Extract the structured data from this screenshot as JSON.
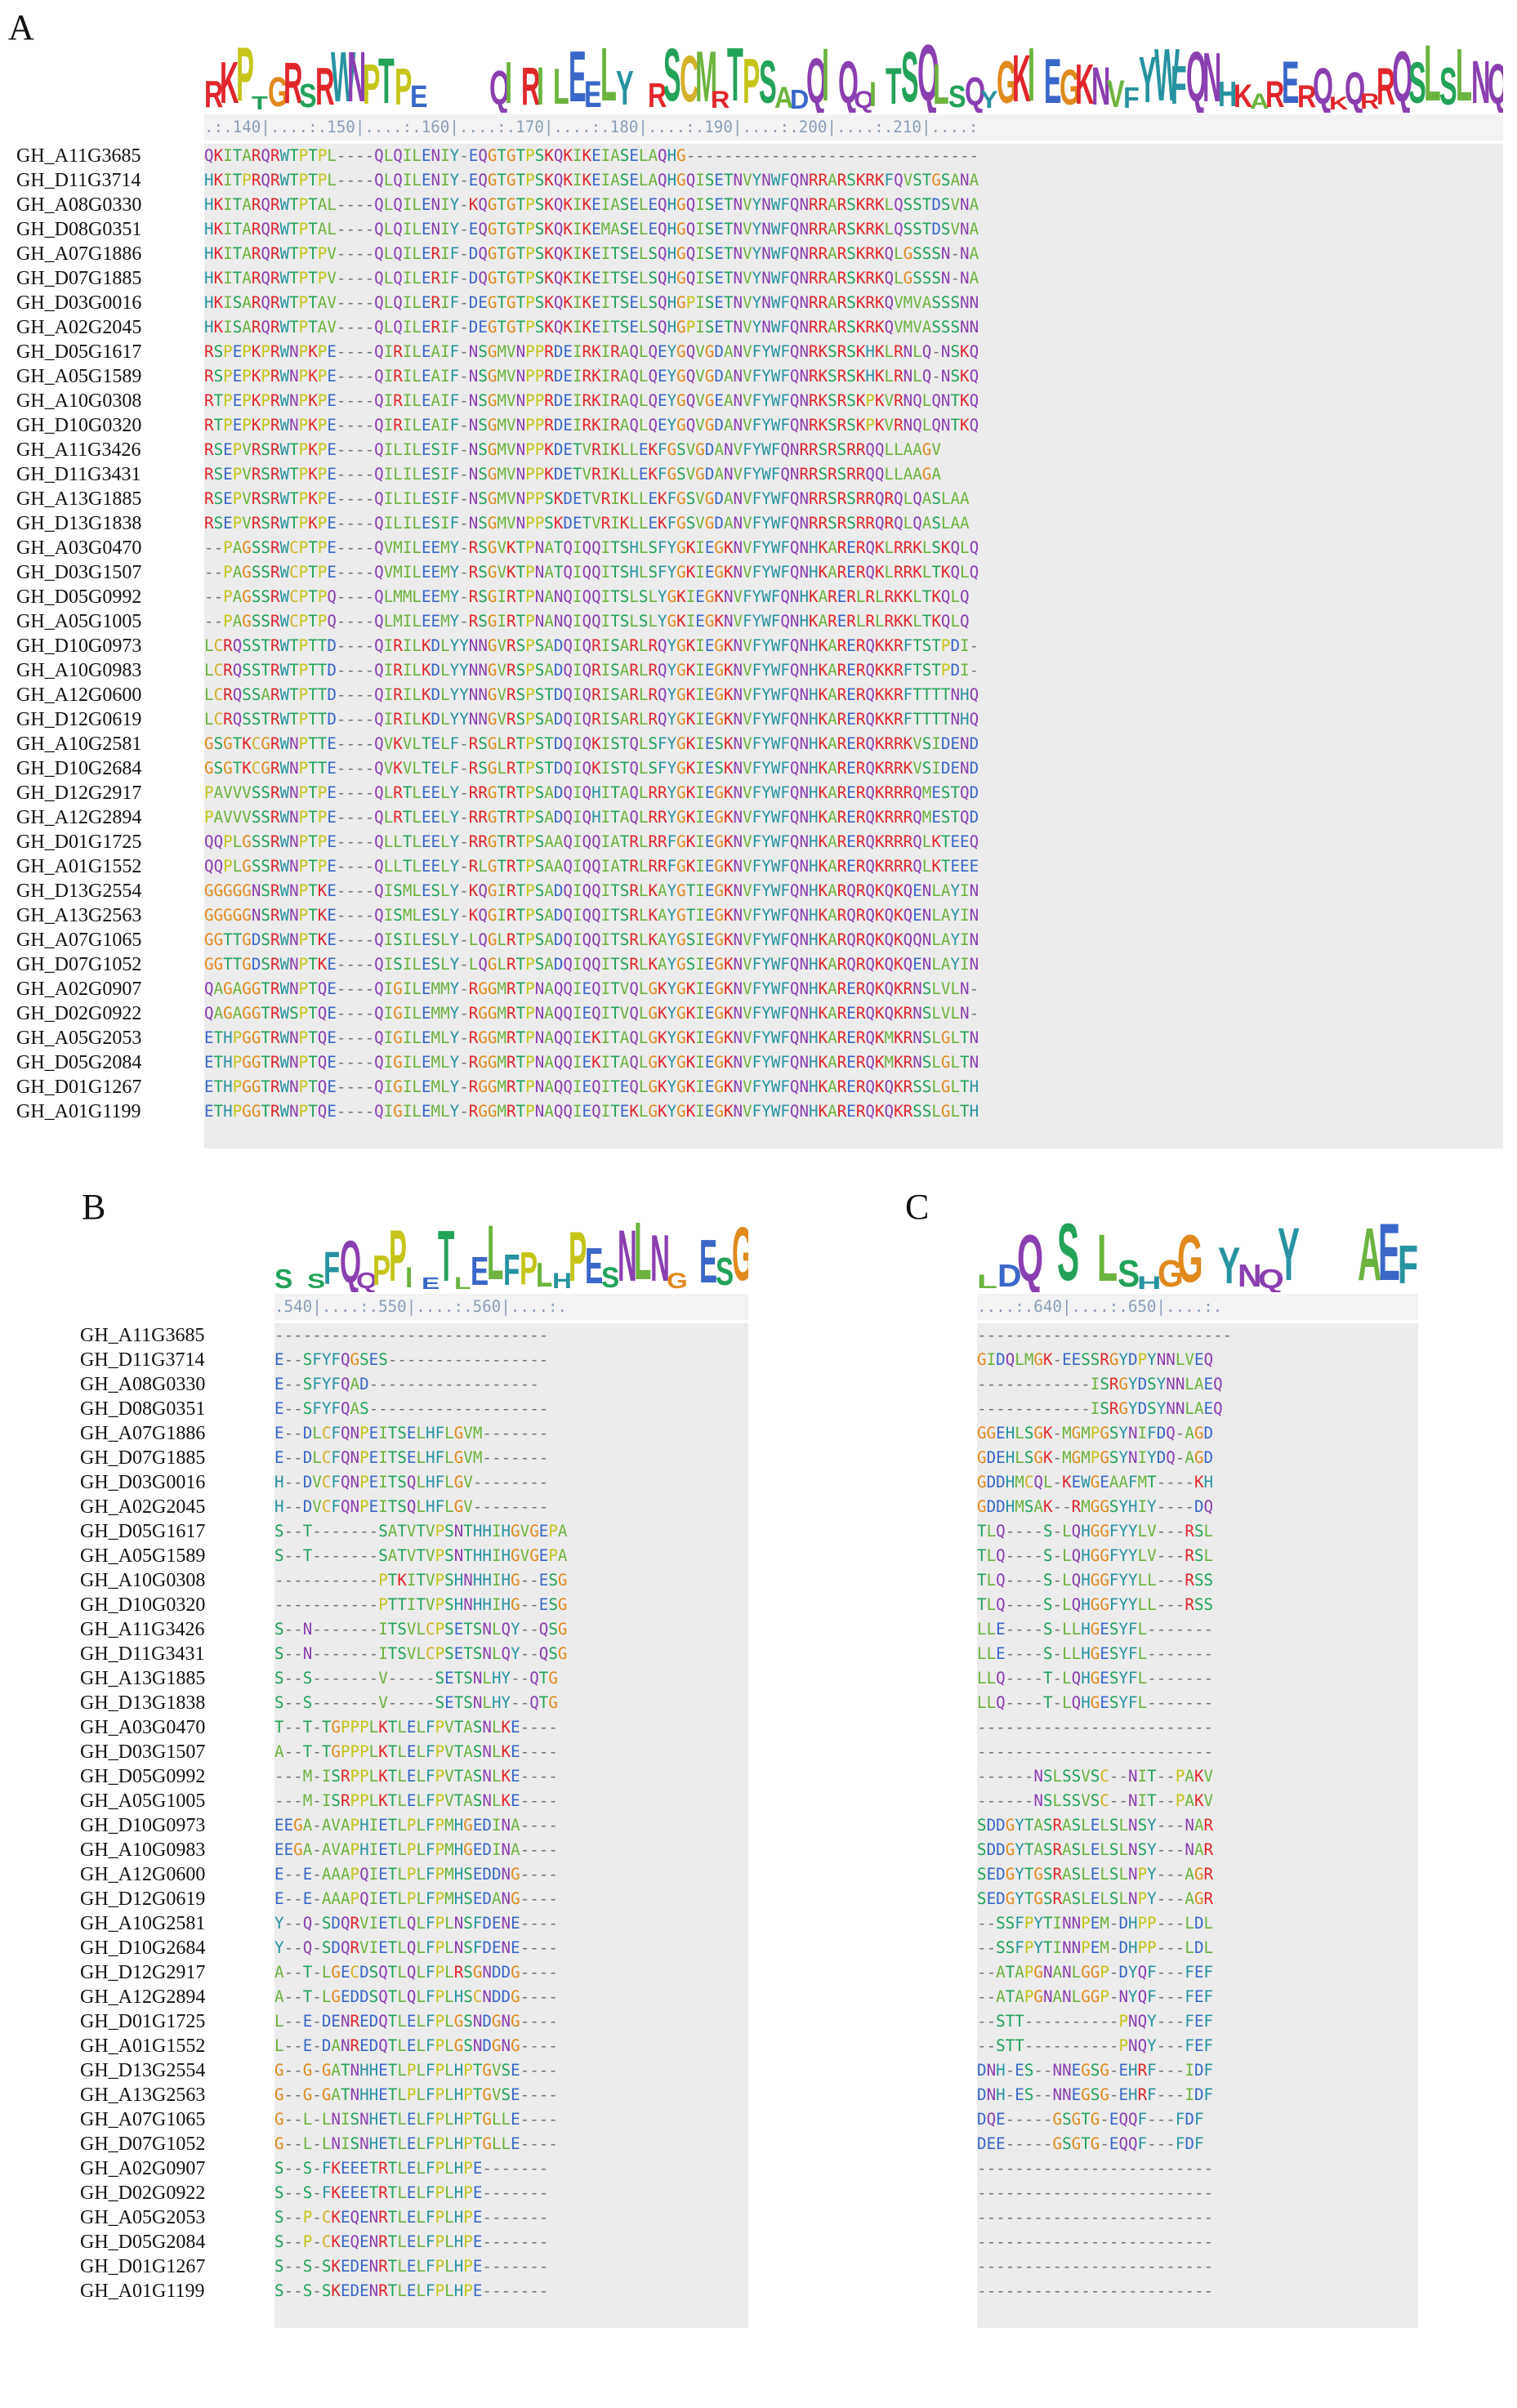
{
  "panels": [
    {
      "id": "A",
      "label": "A",
      "ruler": ".:.140|....:.150|....:.160|....:.170|....:.180|....:.190|....:.200|....:.210|....:",
      "logo": "RKPTGRSRWNPTPE----QIRILEELY-RSCMRTPSADQIQQITSQLSQYGKIEGKNVFYWFQNHKARERQKQRRQSLSLNQ",
      "rows": [
        {
          "name": "GH_A11G3685",
          "seq": "QKITARQRWTPTPL----QLQILENIY-EQGTGTPSKQKIKEIASELAQHG-------------------------------"
        },
        {
          "name": "GH_D11G3714",
          "seq": "HKITPRQRWTPTPL----QLQILENIY-EQGTGTPSKQKIKEIASELAQHGQISETNVYNWFQNRRARSKRKFQVSTGSANA"
        },
        {
          "name": "GH_A08G0330",
          "seq": "HKITARQRWTPTAL----QLQILENIY-KQGTGTPSKQKIKEIASELEQHGQISETNVYNWFQNRRARSKRKLQSSTDSVNA"
        },
        {
          "name": "GH_D08G0351",
          "seq": "HKITARQRWTPTAL----QLQILENIY-EQGTGTPSKQKIKEMASELEQHGQISETNVYNWFQNRRARSKRKLQSSTDSVNA"
        },
        {
          "name": "GH_A07G1886",
          "seq": "HKITARQRWTPTPV----QLQILERIF-DQGTGTPSKQKIKEITSELSQHGQISETNVYNWFQNRRARSKRKQLGSSSN-NA"
        },
        {
          "name": "GH_D07G1885",
          "seq": "HKITARQRWTPTPV----QLQILERIF-DQGTGTPSKQKIKEITSELSQHGQISETNVYNWFQNRRARSKRKQLGSSSN-NA"
        },
        {
          "name": "GH_D03G0016",
          "seq": "HKISARQRWTPTAV----QLQILERIF-DEGTGTPSKQKIKEITSELSQHGPISETNVYNWFQNRRARSKRKQVMVASSSNN"
        },
        {
          "name": "GH_A02G2045",
          "seq": "HKISARQRWTPTAV----QLQILERIF-DEGTGTPSKQKIKEITSELSQHGPISETNVYNWFQNRRARSKRKQVMVASSSNN"
        },
        {
          "name": "GH_D05G1617",
          "seq": "RSPEPKPRWNPKPE----QIRILEAIF-NSGMVNPPRDEIRKIRAQLQEYGQVGDANVFYWFQNRKSRSKHKLRNLQ-NSKQ"
        },
        {
          "name": "GH_A05G1589",
          "seq": "RSPEPKPRWNPKPE----QIRILEAIF-NSGMVNPPRDEIRKIRAQLQEYGQVGDANVFYWFQNRKSRSKHKLRNLQ-NSKQ"
        },
        {
          "name": "GH_A10G0308",
          "seq": "RTPEPKPRWNPKPE----QIRILEAIF-NSGMVNPPRDEIRKIRAQLQEYGQVGEANVFYWFQNRKSRSKPKVRNQLQNTKQ"
        },
        {
          "name": "GH_D10G0320",
          "seq": "RTPEPKPRWNPKPE----QIRILEAIF-NSGMVNPPRDEIRKIRAQLQEYGQVGDANVFYWFQNRKSRSKPKVRNQLQNTKQ"
        },
        {
          "name": "GH_A11G3426",
          "seq": "RSEPVRSRWTPKPE----QILILESIF-NSGMVNPPKDETVRIKLLEKFGSVGDANVFYWFQNRRSRSRRQQLLAAGV"
        },
        {
          "name": "GH_D11G3431",
          "seq": "RSEPVRSRWTPKPE----QILILESIF-NSGMVNPPKDETVRIKLLEKFGSVGDANVFYWFQNRRSRSRRQQLLAAGA"
        },
        {
          "name": "GH_A13G1885",
          "seq": "RSEPVRSRWTPKPE----QILILESIF-NSGMVNPPSKDETVRIKLLEKFGSVGDANVFYWFQNRRSRSRRQRQLQASLAA"
        },
        {
          "name": "GH_D13G1838",
          "seq": "RSEPVRSRWTPKPE----QILILESIF-NSGMVNPPSKDETVRIKLLEKFGSVGDANVFYWFQNRRSRSRRQRQLQASLAA"
        },
        {
          "name": "GH_A03G0470",
          "seq": "--PAGSSRWCPTPE----QVMILEEMY-RSGVKTPNATQIQQITSHLSFYGKIEGKNVFYWFQNHKARERQKLRRKLSKQLQ"
        },
        {
          "name": "GH_D03G1507",
          "seq": "--PAGSSRWCPTPE----QVMILEEMY-RSGVKTPNATQIQQITSHLSFYGKIEGKNVFYWFQNHKARERQKLRRKLTKQLQ"
        },
        {
          "name": "GH_D05G0992",
          "seq": "--PAGSSRWCPTPQ----QLMMLEEMY-RSGIRTPNANQIQQITSLSLYGKIEGKNVFYWFQNHKARERLRLRKKLTKQLQ"
        },
        {
          "name": "GH_A05G1005",
          "seq": "--PAGSSRWCPTPQ----QLMILEEMY-RSGIRTPNANQIQQITSLSLYGKIEGKNVFYWFQNHKARERLRLRKKLTKQLQ"
        },
        {
          "name": "GH_D10G0973",
          "seq": "LCRQSSTRWTPTTD----QIRILKDLYYNNGVRSPSADQIQRISARLRQYGKIEGKNVFYWFQNHKARERQKKRFTSTPDI-"
        },
        {
          "name": "GH_A10G0983",
          "seq": "LCRQSSTRWTPTTD----QIRILKDLYYNNGVRSPSADQIQRISARLRQYGKIEGKNVFYWFQNHKARERQKKRFTSTPDI-"
        },
        {
          "name": "GH_A12G0600",
          "seq": "LCRQSSARWTPTTD----QIRILKDLYYNNGVRSPSTDQIQRISARLRQYGKIEGKNVFYWFQNHKARERQKKRFTTTTNHQ"
        },
        {
          "name": "GH_D12G0619",
          "seq": "LCRQSSTRWTPTTD----QIRILKDLYYNNGVRSPSADQIQRISARLRQYGKIEGKNVFYWFQNHKARERQKKRFTTTTNHQ"
        },
        {
          "name": "GH_A10G2581",
          "seq": "GSGTKCGRWNPTTE----QVKVLTELF-RSGLRTPSTDQIQKISTQLSFYGKIESKNVFYWFQNHKARERQKRRKVSIDEND"
        },
        {
          "name": "GH_D10G2684",
          "seq": "GSGTKCGRWNPTTE----QVKVLTELF-RSGLRTPSTDQIQKISTQLSFYGKIESKNVFYWFQNHKARERQKRRKVSIDEND"
        },
        {
          "name": "GH_D12G2917",
          "seq": "PAVVVSSRWNPTPE----QLRTLEELY-RRGTRTPSADQIQHITAQLRRYGKIEGKNVFYWFQNHKARERQKRRRQMESTQD"
        },
        {
          "name": "GH_A12G2894",
          "seq": "PAVVVSSRWNPTPE----QLRTLEELY-RRGTRTPSADQIQHITAQLRRYGKIEGKNVFYWFQNHKARERQKRRRQMESTQD"
        },
        {
          "name": "GH_D01G1725",
          "seq": "QQPLGSSRWNPTPE----QLLTLEELY-RRGTRTPSAAQIQQIATRLRRFGKIEGKNVFYWFQNHKARERQKRRRQLKTEEQ"
        },
        {
          "name": "GH_A01G1552",
          "seq": "QQPLGSSRWNPTPE----QLLTLEELY-RLGTRTPSAAQIQQIATRLRRFGKIEGKNVFYWFQNHKARERQKRRRQLKTEEE"
        },
        {
          "name": "GH_D13G2554",
          "seq": "GGGGGNSRWNPTKE----QISMLESLY-KQGIRTPSADQIQQITSRLKAYGTIEGKNVFYWFQNHKARQRQKQKQENLAYIN"
        },
        {
          "name": "GH_A13G2563",
          "seq": "GGGGGNSRWNPTKE----QISMLESLY-KQGIRTPSADQIQQITSRLKAYGTIEGKNVFYWFQNHKARQRQKQKQENLAYIN"
        },
        {
          "name": "GH_A07G1065",
          "seq": "GGTTGDSRWNPTKE----QISILESLY-LQGLRTPSADQIQQITSRLKAYGSIEGKNVFYWFQNHKARQRQKQKQQNLAYIN"
        },
        {
          "name": "GH_D07G1052",
          "seq": "GGTTGDSRWNPTKE----QISILESLY-LQGLRTPSADQIQQITSRLKAYGSIEGKNVFYWFQNHKARQRQKQKQENLAYIN"
        },
        {
          "name": "GH_A02G0907",
          "seq": "QAGAGGTRWNPTQE----QIGILEMMY-RGGMRTPNAQQIEQITVQLGKYGKIEGKNVFYWFQNHKARERQKQKRNSLVLN-"
        },
        {
          "name": "GH_D02G0922",
          "seq": "QAGAGGTRWSPTQE----QIGILEMMY-RGGMRTPNAQQIEQITVQLGKYGKIEGKNVFYWFQNHKARERQKQKRNSLVLN-"
        },
        {
          "name": "GH_A05G2053",
          "seq": "ETHPGGTRWNPTQE----QIGILEMLY-RGGMRTPNAQQIEKITAQLGKYGKIEGKNVFYWFQNHKARERQKMKRNSLGLTN"
        },
        {
          "name": "GH_D05G2084",
          "seq": "ETHPGGTRWNPTQE----QIGILEMLY-RGGMRTPNAQQIEKITAQLGKYGKIEGKNVFYWFQNHKARERQKMKRNSLGLTN"
        },
        {
          "name": "GH_D01G1267",
          "seq": "ETHPGGTRWNPTQE----QIGILEMLY-RGGMRTPNAQQIEQITEQLGKYGKIEGKNVFYWFQNHKARERQKQKRSSLGLTH"
        },
        {
          "name": "GH_A01G1199",
          "seq": "ETHPGGTRWNPTQE----QIGILEMLY-RGGMRTPNAQQIEQITEKLGKYGKIEGKNVFYWFQNHKARERQKQKRSSLGLTH"
        }
      ]
    },
    {
      "id": "B",
      "label": "B",
      "ruler": ".540|....:.550|....:.560|....:.",
      "logo": "S-SFQQPPIETLELFPLHPESNLNG-ESG",
      "rows": [
        {
          "name": "GH_A11G3685",
          "seq": "-----------------------------"
        },
        {
          "name": "GH_D11G3714",
          "seq": "E--SFYFQGSES-----------------"
        },
        {
          "name": "GH_A08G0330",
          "seq": "E--SFYFQAD------------------"
        },
        {
          "name": "GH_D08G0351",
          "seq": "E--SFYFQAS-------------------"
        },
        {
          "name": "GH_A07G1886",
          "seq": "E--DLCFQNPEITSELHFLGVM-------"
        },
        {
          "name": "GH_D07G1885",
          "seq": "E--DLCFQNPEITSELHFLGVM-------"
        },
        {
          "name": "GH_D03G0016",
          "seq": "H--DVCFQNPEITSQLHFLGV--------"
        },
        {
          "name": "GH_A02G2045",
          "seq": "H--DVCFQNPEITSQLHFLGV--------"
        },
        {
          "name": "GH_D05G1617",
          "seq": "S--T-------SATVTVPSNTHHIHGVGEPA"
        },
        {
          "name": "GH_A05G1589",
          "seq": "S--T-------SATVTVPSNTHHIHGVGEPA"
        },
        {
          "name": "GH_A10G0308",
          "seq": "-----------PTKITVPSHNHHIHG--ESG"
        },
        {
          "name": "GH_D10G0320",
          "seq": "-----------PTTITVPSHNHHIHG--ESG"
        },
        {
          "name": "GH_A11G3426",
          "seq": "S--N-------ITSVLCPSETSNLQY--QSG"
        },
        {
          "name": "GH_D11G3431",
          "seq": "S--N-------ITSVLCPSETSNLQY--QSG"
        },
        {
          "name": "GH_A13G1885",
          "seq": "S--S-------V-----SETSNLHY--QTG"
        },
        {
          "name": "GH_D13G1838",
          "seq": "S--S-------V-----SETSNLHY--QTG"
        },
        {
          "name": "GH_A03G0470",
          "seq": "T--T-TGPPPLKTLELFPVTASNLKE----"
        },
        {
          "name": "GH_D03G1507",
          "seq": "A--T-TGPPPLKTLELFPVTASNLKE----"
        },
        {
          "name": "GH_D05G0992",
          "seq": "---M-ISRPPLKTLELFPVTASNLKE----"
        },
        {
          "name": "GH_A05G1005",
          "seq": "---M-ISRPPLKTLELFPVTASNLKE----"
        },
        {
          "name": "GH_D10G0973",
          "seq": "EEGA-AVAPHIETLPLFPMHGEDINA----"
        },
        {
          "name": "GH_A10G0983",
          "seq": "EEGA-AVAPHIETLPLFPMHGEDINA----"
        },
        {
          "name": "GH_A12G0600",
          "seq": "E--E-AAAPQIETLPLFPMHSEDDNG----"
        },
        {
          "name": "GH_D12G0619",
          "seq": "E--E-AAAPQIETLPLFPMHSEDANG----"
        },
        {
          "name": "GH_A10G2581",
          "seq": "Y--Q-SDQRVIETLQLFPLNSFDENE----"
        },
        {
          "name": "GH_D10G2684",
          "seq": "Y--Q-SDQRVIETLQLFPLNSFDENE----"
        },
        {
          "name": "GH_D12G2917",
          "seq": "A--T-LGECDSQTLQLFPLRSGNDDG----"
        },
        {
          "name": "GH_A12G2894",
          "seq": "A--T-LGEDDSQTLQLFPLHSCNDDG----"
        },
        {
          "name": "GH_D01G1725",
          "seq": "L--E-DENREDQTLELFPLGSNDGNG----"
        },
        {
          "name": "GH_A01G1552",
          "seq": "L--E-DANREDQTLELFPLGSNDGNG----"
        },
        {
          "name": "GH_D13G2554",
          "seq": "G--G-GATNHHETLPLFPLHPTGVSE----"
        },
        {
          "name": "GH_A13G2563",
          "seq": "G--G-GATNHHETLPLFPLHPTGVSE----"
        },
        {
          "name": "GH_A07G1065",
          "seq": "G--L-LNISNHETLELFPLHPTGLLE----"
        },
        {
          "name": "GH_D07G1052",
          "seq": "G--L-LNISNHETLELFPLHPTGLLE----"
        },
        {
          "name": "GH_A02G0907",
          "seq": "S--S-FKEEETRTLELFPLHPE-------"
        },
        {
          "name": "GH_D02G0922",
          "seq": "S--S-FKEEETRTLELFPLHPE-------"
        },
        {
          "name": "GH_A05G2053",
          "seq": "S--P-CKEQENRTLELFPLHPE-------"
        },
        {
          "name": "GH_D05G2084",
          "seq": "S--P-CKEQENRTLELFPLHPE-------"
        },
        {
          "name": "GH_D01G1267",
          "seq": "S--S-SKEDENRTLELFPLHPE-------"
        },
        {
          "name": "GH_A01G1199",
          "seq": "S--S-SKEDENRTLELFPLHPE-------"
        }
      ]
    },
    {
      "id": "C",
      "label": "C",
      "ruler": "....:.640|....:.650|....:.",
      "logo": "LDQ-S-LSHGG-YNQY---AEF",
      "rows": [
        {
          "name": "GH_A11G3685",
          "seq": "---------------------------"
        },
        {
          "name": "GH_D11G3714",
          "seq": "GIDQLMGK-EESSRGYDPYNNLVEQ"
        },
        {
          "name": "GH_A08G0330",
          "seq": "------------ISRGYDSYNNLAEQ"
        },
        {
          "name": "GH_D08G0351",
          "seq": "------------ISRGYDSYNNLAEQ"
        },
        {
          "name": "GH_A07G1886",
          "seq": "GGEHLSGK-MGMPGSYNIFDQ-AGD"
        },
        {
          "name": "GH_D07G1885",
          "seq": "GDEHLSGK-MGMPGSYNIYDQ-AGD"
        },
        {
          "name": "GH_D03G0016",
          "seq": "GDDHMCQL-KEWGEAAFMT----KH"
        },
        {
          "name": "GH_A02G2045",
          "seq": "GDDHMSAK--RMGGSYHIY----DQ"
        },
        {
          "name": "GH_D05G1617",
          "seq": "TLQ----S-LQHGGFYYLV---RSL"
        },
        {
          "name": "GH_A05G1589",
          "seq": "TLQ----S-LQHGGFYYLV---RSL"
        },
        {
          "name": "GH_A10G0308",
          "seq": "TLQ----S-LQHGGFYYLL---RSS"
        },
        {
          "name": "GH_D10G0320",
          "seq": "TLQ----S-LQHGGFYYLL---RSS"
        },
        {
          "name": "GH_A11G3426",
          "seq": "LLE----S-LLHGESYFL-------"
        },
        {
          "name": "GH_D11G3431",
          "seq": "LLE----S-LLHGESYFL-------"
        },
        {
          "name": "GH_A13G1885",
          "seq": "LLQ----T-LQHGESYFL-------"
        },
        {
          "name": "GH_D13G1838",
          "seq": "LLQ----T-LQHGESYFL-------"
        },
        {
          "name": "GH_A03G0470",
          "seq": "-------------------------"
        },
        {
          "name": "GH_D03G1507",
          "seq": "-------------------------"
        },
        {
          "name": "GH_D05G0992",
          "seq": "------NSLSSVSC--NIT--PAKV"
        },
        {
          "name": "GH_A05G1005",
          "seq": "------NSLSSVSC--NIT--PAKV"
        },
        {
          "name": "GH_D10G0973",
          "seq": "SDDGYTASRASLELSLNSY---NAR"
        },
        {
          "name": "GH_A10G0983",
          "seq": "SDDGYTASRASLELSLNSY---NAR"
        },
        {
          "name": "GH_A12G0600",
          "seq": "SEDGYTGSRASLELSLNPY---AGR"
        },
        {
          "name": "GH_D12G0619",
          "seq": "SEDGYTGSRASLELSLNPY---AGR"
        },
        {
          "name": "GH_A10G2581",
          "seq": "--SSFPYTINNPEM-DHPP---LDL"
        },
        {
          "name": "GH_D10G2684",
          "seq": "--SSFPYTINNPEM-DHPP---LDL"
        },
        {
          "name": "GH_D12G2917",
          "seq": "--ATAPGNANLGGP-DYQF---FEF"
        },
        {
          "name": "GH_A12G2894",
          "seq": "--ATAPGNANLGGP-NYQF---FEF"
        },
        {
          "name": "GH_D01G1725",
          "seq": "--STT----------PNQY---FEF"
        },
        {
          "name": "GH_A01G1552",
          "seq": "--STT----------PNQY---FEF"
        },
        {
          "name": "GH_D13G2554",
          "seq": "DNH-ES--NNEGSG-EHRF---IDF"
        },
        {
          "name": "GH_A13G2563",
          "seq": "DNH-ES--NNEGSG-EHRF---IDF"
        },
        {
          "name": "GH_A07G1065",
          "seq": "DQE-----GSGTG-EQQF---FDF"
        },
        {
          "name": "GH_D07G1052",
          "seq": "DEE-----GSGTG-EQQF---FDF"
        },
        {
          "name": "GH_A02G0907",
          "seq": "-------------------------"
        },
        {
          "name": "GH_D02G0922",
          "seq": "-------------------------"
        },
        {
          "name": "GH_A05G2053",
          "seq": "-------------------------"
        },
        {
          "name": "GH_D05G2084",
          "seq": "-------------------------"
        },
        {
          "name": "GH_D01G1267",
          "seq": "-------------------------"
        },
        {
          "name": "GH_A01G1199",
          "seq": "-------------------------"
        }
      ]
    }
  ],
  "palette": {
    "hydrophobic": "#6db33f",
    "acidic": "#3a67c8",
    "basic": "#e0262b",
    "polar": "#23a25a",
    "amide": "#3d8a2f",
    "aromatic": "#2793a0",
    "proline": "#c5c51a",
    "glycine": "#e08a1e",
    "cysteine": "#d4b12a",
    "special": "#8a3fb0",
    "gap": "#777777"
  }
}
